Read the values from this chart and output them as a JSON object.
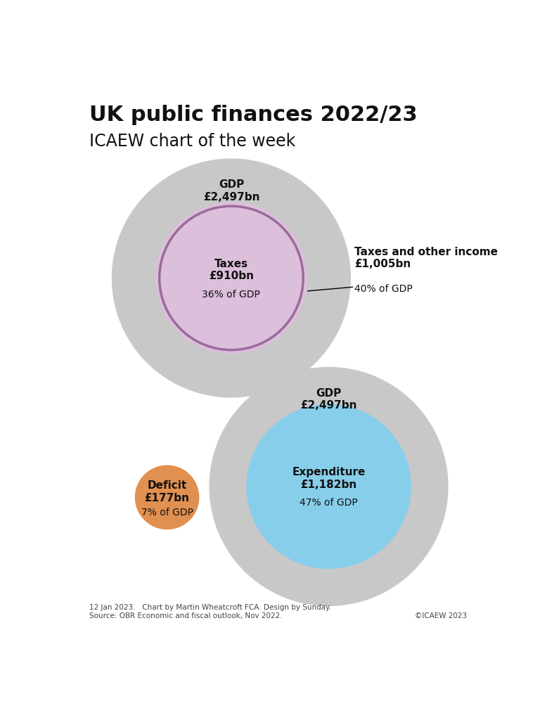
{
  "title": "UK public finances 2022/23",
  "subtitle": "ICAEW chart of the week",
  "title_fontsize": 22,
  "subtitle_fontsize": 17,
  "gdp_value": 2497,
  "taxes_income_value": 1005,
  "taxes_value": 910,
  "expenditure_value": 1182,
  "deficit_value": 177,
  "taxes_income_pct": "40% of GDP",
  "taxes_pct": "36% of GDP",
  "expenditure_pct": "47% of GDP",
  "deficit_pct": "7% of GDP",
  "gdp_label": "GDP\n£2,497bn",
  "taxes_income_label": "Taxes and other income\n£1,005bn",
  "taxes_label": "Taxes\n£910bn",
  "expenditure_label": "Expenditure\n£1,182bn",
  "deficit_label": "Deficit\n£177bn",
  "gdp_color": "#c8c8c8",
  "taxes_income_color": "#dbbfdb",
  "taxes_color": "#dbbfdb",
  "taxes_border_color": "#9b6b9b",
  "expenditure_color": "#87ceeb",
  "deficit_color": "#e09050",
  "background_color": "#ffffff",
  "text_dark": "#111111",
  "text_mid": "#444444",
  "footnote_line1": "12 Jan 2023.   Chart by Martin Wheatcroft FCA. Design by Sunday.",
  "footnote_line2": "Source: OBR Economic and fiscal outlook, Nov 2022.",
  "copyright": "©ICAEW 2023"
}
